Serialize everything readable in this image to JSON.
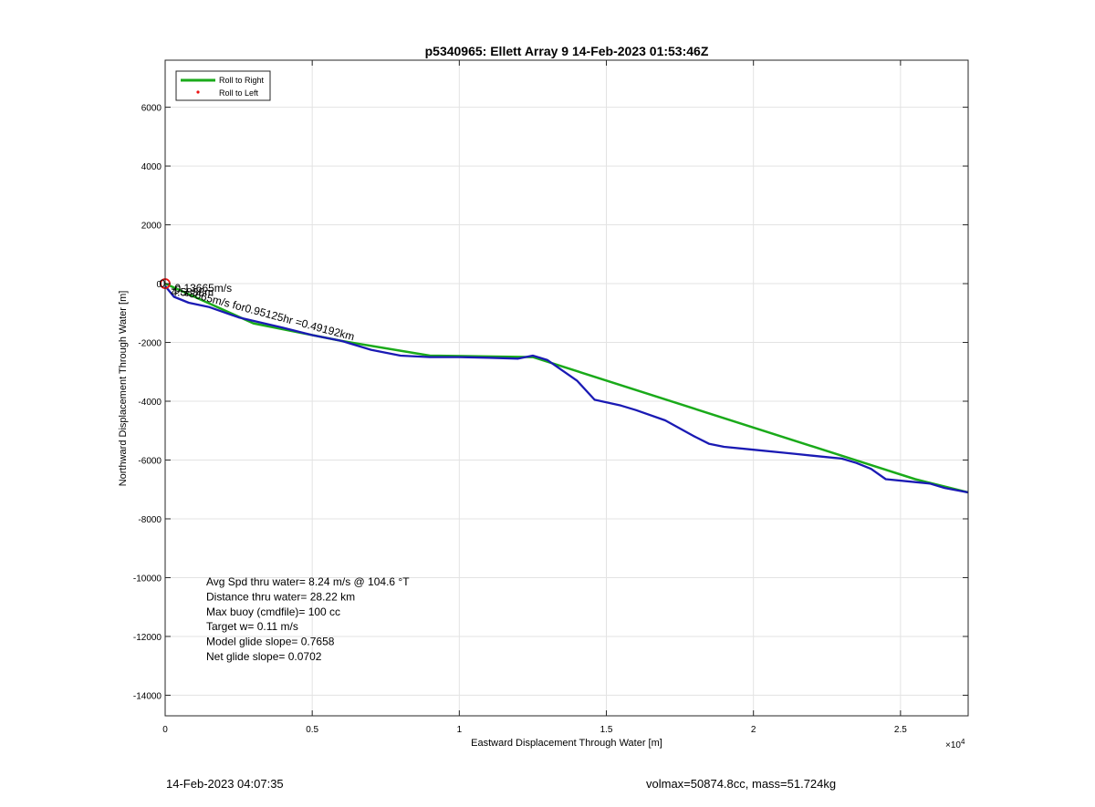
{
  "chart_data": {
    "type": "line",
    "title": "p5340965: Ellett Array 9 14-Feb-2023 01:53:46Z",
    "xlabel": "Eastward Displacement Through Water [m]",
    "ylabel": "Northward Displacement Through Water [m]",
    "x_exponent_label": "×10",
    "x_exponent": "4",
    "xlim": [
      0,
      27300
    ],
    "ylim": [
      -14700,
      7600
    ],
    "xticks": [
      0,
      5000,
      10000,
      15000,
      20000,
      25000
    ],
    "xtick_labels": [
      "0",
      "0.5",
      "1",
      "1.5",
      "2",
      "2.5"
    ],
    "yticks": [
      6000,
      4000,
      2000,
      0,
      -2000,
      -4000,
      -6000,
      -8000,
      -10000,
      -12000,
      -14000
    ],
    "ytick_labels": [
      "6000",
      "4000",
      "2000",
      "0",
      "-2000",
      "-4000",
      "-6000",
      "-8000",
      "-10000",
      "-12000",
      "-14000"
    ],
    "grid": true,
    "legend_position": "top-left",
    "legend": [
      {
        "label": "Roll to Right",
        "color": "#1aaa1a",
        "style": "line"
      },
      {
        "label": "Roll to Left",
        "color": "#ee1111",
        "style": "dot"
      }
    ],
    "series": [
      {
        "name": "Roll to Right",
        "color": "#1aaa1a",
        "points": [
          [
            0,
            0
          ],
          [
            3000,
            -1350
          ],
          [
            6000,
            -1950
          ],
          [
            9000,
            -2450
          ],
          [
            12500,
            -2500
          ],
          [
            25500,
            -6650
          ],
          [
            27300,
            -7100
          ]
        ]
      },
      {
        "color": "#1a1ab4",
        "points": [
          [
            0,
            -80
          ],
          [
            300,
            -450
          ],
          [
            800,
            -650
          ],
          [
            1500,
            -800
          ],
          [
            2500,
            -1150
          ],
          [
            4000,
            -1500
          ],
          [
            5000,
            -1750
          ],
          [
            6000,
            -1950
          ],
          [
            7000,
            -2250
          ],
          [
            8000,
            -2450
          ],
          [
            9000,
            -2500
          ],
          [
            10000,
            -2500
          ],
          [
            11000,
            -2520
          ],
          [
            12000,
            -2550
          ],
          [
            12500,
            -2450
          ],
          [
            13000,
            -2600
          ],
          [
            14000,
            -3300
          ],
          [
            14600,
            -3950
          ],
          [
            15500,
            -4150
          ],
          [
            16000,
            -4300
          ],
          [
            17000,
            -4650
          ],
          [
            18000,
            -5200
          ],
          [
            18500,
            -5450
          ],
          [
            19000,
            -5550
          ],
          [
            20000,
            -5650
          ],
          [
            21000,
            -5750
          ],
          [
            21500,
            -5800
          ],
          [
            22000,
            -5850
          ],
          [
            22500,
            -5900
          ],
          [
            23000,
            -5950
          ],
          [
            23500,
            -6100
          ],
          [
            24000,
            -6300
          ],
          [
            24500,
            -6650
          ],
          [
            25500,
            -6750
          ],
          [
            26000,
            -6800
          ],
          [
            26500,
            -6950
          ],
          [
            27300,
            -7100
          ]
        ]
      }
    ],
    "markers": [
      {
        "name": "start-circle",
        "x": 0,
        "y": 0,
        "color": "#ee1111"
      }
    ],
    "annotations": [
      {
        "text": "0",
        "x": -200,
        "y": 0
      },
      {
        "text": "-0.13665m/s for0.95125hr =0.49192km",
        "x": 200,
        "y": -150,
        "rotation": 15
      },
      {
        "text": "-0.13665m/s",
        "x": 200,
        "y": -150
      },
      {
        "text": "4.5838m",
        "x": 200,
        "y": -300
      }
    ],
    "stats": [
      "Avg Spd thru water=  8.24 m/s @ 104.6 °T",
      "Distance thru water= 28.22 km",
      "Max buoy (cmdfile)= 100 cc",
      "Target w= 0.11 m/s",
      "Model glide slope= 0.7658",
      "Net glide slope= 0.0702"
    ]
  },
  "footer": {
    "left": "14-Feb-2023 04:07:35",
    "right": "volmax=50874.8cc, mass=51.724kg"
  }
}
